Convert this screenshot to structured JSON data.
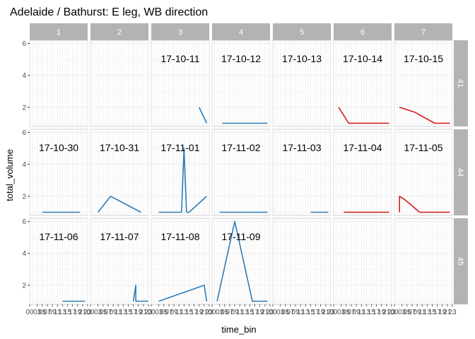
{
  "chart_data": {
    "type": "line",
    "title": "Adelaide / Bathurst: E leg, WB direction",
    "xlabel": "time_bin",
    "ylabel": "total_volume",
    "facet_columns": [
      "1",
      "2",
      "3",
      "4",
      "5",
      "6",
      "7"
    ],
    "facet_rows": [
      "41",
      "44",
      "45"
    ],
    "y_ticks": [
      2,
      4,
      6
    ],
    "ylim": [
      0.8,
      6.2
    ],
    "x_tick_labels_text": [
      "00",
      "03",
      "05",
      "07",
      "09",
      "11",
      "13",
      "15",
      "17",
      "19",
      "21",
      "23"
    ],
    "xlim": [
      0,
      23
    ],
    "legend": "none",
    "grid": true,
    "colors": {
      "normal": "#2c7bb6",
      "highlight": "#d7191c",
      "strip": "#b3b3b3",
      "grid": "#ebebeb"
    },
    "panels": [
      {
        "row": "41",
        "col": "1",
        "date": "",
        "color": "normal",
        "x": [],
        "y": []
      },
      {
        "row": "41",
        "col": "2",
        "date": "",
        "color": "normal",
        "x": [],
        "y": []
      },
      {
        "row": "41",
        "col": "3",
        "date": "17-10-11",
        "color": "normal",
        "x": [
          19,
          22
        ],
        "y": [
          2,
          1
        ]
      },
      {
        "row": "41",
        "col": "4",
        "date": "17-10-12",
        "color": "normal",
        "x": [
          4,
          10,
          16,
          22
        ],
        "y": [
          1,
          1,
          1,
          1
        ]
      },
      {
        "row": "41",
        "col": "5",
        "date": "17-10-13",
        "color": "normal",
        "x": [],
        "y": []
      },
      {
        "row": "41",
        "col": "6",
        "date": "17-10-14",
        "color": "highlight",
        "x": [
          2,
          6,
          12,
          22
        ],
        "y": [
          2,
          1,
          1,
          1
        ]
      },
      {
        "row": "41",
        "col": "7",
        "date": "17-10-15",
        "color": "highlight",
        "x": [
          2,
          8,
          16,
          22
        ],
        "y": [
          2,
          1.7,
          1,
          1
        ]
      },
      {
        "row": "44",
        "col": "1",
        "date": "17-10-30",
        "color": "normal",
        "x": [
          5,
          12,
          20
        ],
        "y": [
          1,
          1,
          1
        ]
      },
      {
        "row": "44",
        "col": "2",
        "date": "17-10-31",
        "color": "normal",
        "x": [
          3,
          8,
          20
        ],
        "y": [
          1,
          2,
          1
        ]
      },
      {
        "row": "44",
        "col": "3",
        "date": "17-11-01",
        "color": "normal",
        "x": [
          3,
          12,
          13,
          14,
          15,
          22
        ],
        "y": [
          1,
          1,
          5,
          1,
          1,
          2
        ]
      },
      {
        "row": "44",
        "col": "4",
        "date": "17-11-02",
        "color": "normal",
        "x": [
          3,
          10,
          16,
          22
        ],
        "y": [
          1,
          1,
          1,
          1
        ]
      },
      {
        "row": "44",
        "col": "5",
        "date": "17-11-03",
        "color": "normal",
        "x": [
          15,
          22
        ],
        "y": [
          1,
          1
        ]
      },
      {
        "row": "44",
        "col": "6",
        "date": "17-11-04",
        "color": "highlight",
        "x": [
          4,
          12,
          22
        ],
        "y": [
          1,
          1,
          1
        ]
      },
      {
        "row": "44",
        "col": "7",
        "date": "17-11-05",
        "color": "highlight",
        "x": [
          2,
          2,
          4,
          10,
          22
        ],
        "y": [
          1,
          2,
          1.8,
          1,
          1
        ]
      },
      {
        "row": "45",
        "col": "1",
        "date": "17-11-06",
        "color": "normal",
        "x": [
          13,
          22
        ],
        "y": [
          1,
          1
        ]
      },
      {
        "row": "45",
        "col": "2",
        "date": "17-11-07",
        "color": "normal",
        "x": [
          17,
          18,
          18,
          23
        ],
        "y": [
          1,
          2,
          1,
          1
        ]
      },
      {
        "row": "45",
        "col": "3",
        "date": "17-11-08",
        "color": "normal",
        "x": [
          3,
          21,
          22
        ],
        "y": [
          1,
          2,
          1
        ]
      },
      {
        "row": "45",
        "col": "4",
        "date": "17-11-09",
        "color": "normal",
        "x": [
          2,
          9,
          16,
          22
        ],
        "y": [
          1,
          6,
          1,
          1
        ]
      },
      {
        "row": "45",
        "col": "5",
        "date": "",
        "color": "normal",
        "x": [],
        "y": []
      },
      {
        "row": "45",
        "col": "6",
        "date": "",
        "color": "normal",
        "x": [],
        "y": []
      },
      {
        "row": "45",
        "col": "7",
        "date": "",
        "color": "normal",
        "x": [],
        "y": []
      }
    ]
  }
}
